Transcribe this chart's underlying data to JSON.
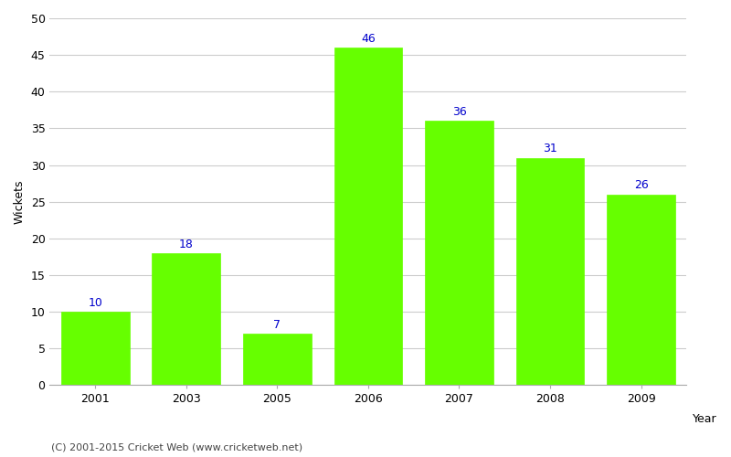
{
  "years": [
    "2001",
    "2003",
    "2005",
    "2006",
    "2007",
    "2008",
    "2009"
  ],
  "values": [
    10,
    18,
    7,
    46,
    36,
    31,
    26
  ],
  "bar_color": "#66ff00",
  "bar_edge_color": "#66ff00",
  "title": "",
  "xlabel": "Year",
  "ylabel": "Wickets",
  "ylim": [
    0,
    50
  ],
  "yticks": [
    0,
    5,
    10,
    15,
    20,
    25,
    30,
    35,
    40,
    45,
    50
  ],
  "label_color": "#0000cc",
  "label_fontsize": 9,
  "axis_fontsize": 9,
  "tick_fontsize": 9,
  "background_color": "#ffffff",
  "grid_color": "#cccccc",
  "caption": "(C) 2001-2015 Cricket Web (www.cricketweb.net)"
}
